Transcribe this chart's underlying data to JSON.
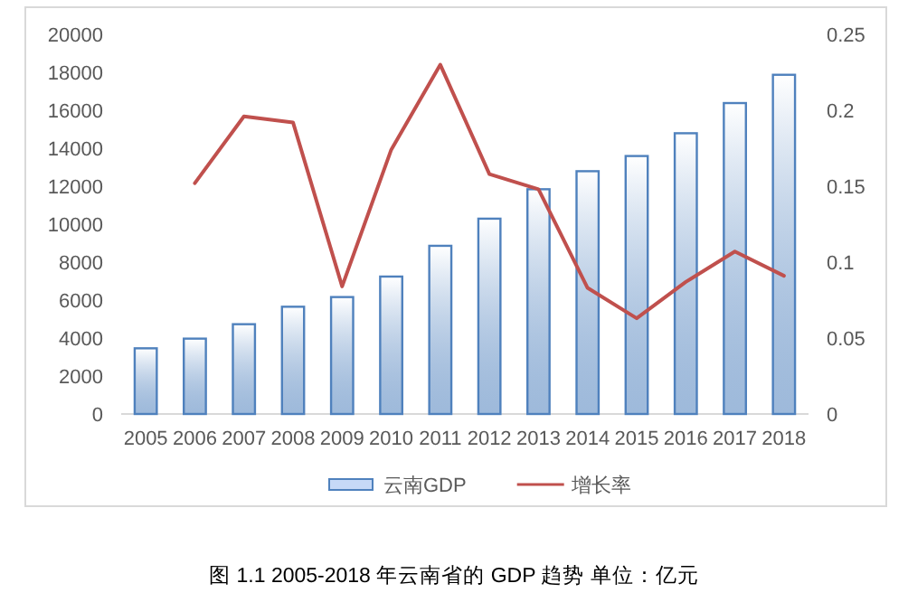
{
  "chart_data": {
    "type": "bar",
    "categories": [
      "2005",
      "2006",
      "2007",
      "2008",
      "2009",
      "2010",
      "2011",
      "2012",
      "2013",
      "2014",
      "2015",
      "2016",
      "2017",
      "2018"
    ],
    "series": [
      {
        "name": "云南GDP",
        "color": "#4f81bd",
        "values": [
          3460,
          3970,
          4730,
          5650,
          6160,
          7240,
          8860,
          10290,
          11840,
          12790,
          13590,
          14790,
          16380,
          17870
        ]
      },
      {
        "name": "增长率",
        "type": "line",
        "axis": "y2",
        "color": "#c0504d",
        "values": [
          null,
          0.152,
          0.196,
          0.192,
          0.084,
          0.174,
          0.23,
          0.158,
          0.148,
          0.083,
          0.063,
          0.087,
          0.107,
          0.091
        ]
      }
    ],
    "ylim": [
      0,
      20000
    ],
    "yticks": [
      0,
      2000,
      4000,
      6000,
      8000,
      10000,
      12000,
      14000,
      16000,
      18000,
      20000
    ],
    "y2lim": [
      0,
      0.25
    ],
    "y2ticks": [
      0,
      0.05,
      0.1,
      0.15,
      0.2,
      0.25
    ],
    "legend": "bottom",
    "grid": false,
    "annotations": [
      "图 1.1 2005-2018 年云南省的 GDP 趋势  单位：亿元"
    ]
  }
}
